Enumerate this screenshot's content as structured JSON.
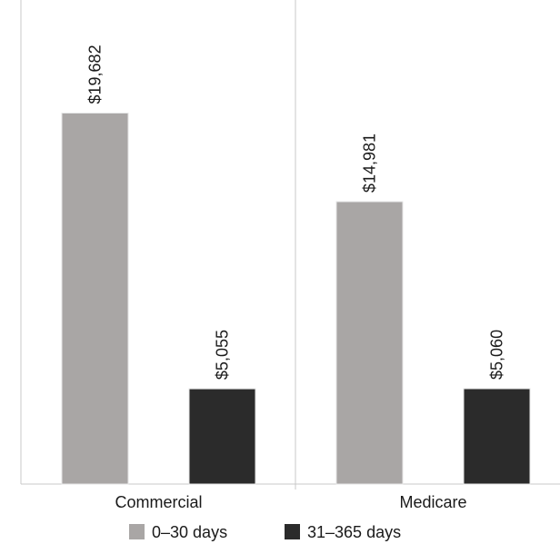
{
  "chart_data": {
    "type": "bar",
    "categories": [
      "Commercial",
      "Medicare"
    ],
    "series": [
      {
        "name": "0–30 days",
        "values": [
          19682,
          14981
        ],
        "color": "#a9a6a5"
      },
      {
        "name": "31–365 days",
        "values": [
          5055,
          5060
        ],
        "color": "#2b2b2b"
      }
    ],
    "data_labels": [
      [
        "$19,682",
        "$14,981"
      ],
      [
        "$5,055",
        "$5,060"
      ]
    ],
    "ylim": [
      0,
      25680
    ],
    "grid": false,
    "legend": "bottom",
    "title": "",
    "xlabel": "",
    "ylabel": ""
  }
}
